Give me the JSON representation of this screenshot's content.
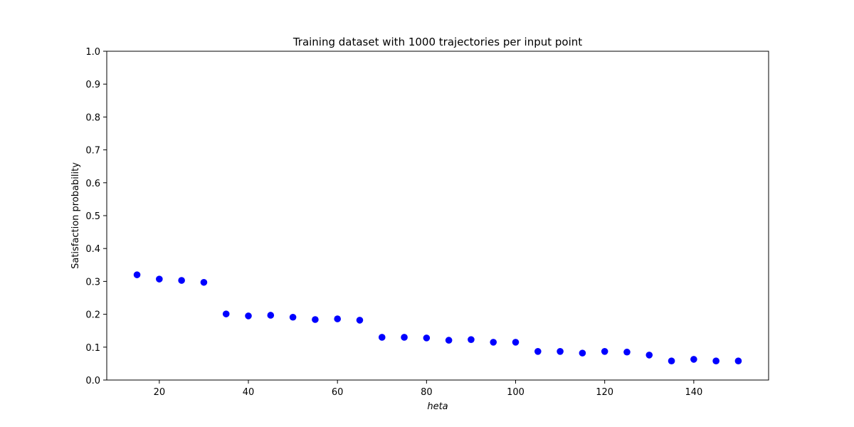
{
  "chart_data": {
    "type": "scatter",
    "title": "Training dataset with 1000 trajectories per input point",
    "xlabel": "heta",
    "ylabel": "Satisfaction probability",
    "xlim": [
      8.2,
      156.8
    ],
    "ylim": [
      0,
      1
    ],
    "xticks": [
      20,
      40,
      60,
      80,
      100,
      120,
      140
    ],
    "yticks": [
      0.0,
      0.1,
      0.2,
      0.3,
      0.4,
      0.5,
      0.6,
      0.7,
      0.8,
      0.9,
      1.0
    ],
    "grid": false,
    "marker_color": "#0000ff",
    "series": [
      {
        "x": [
          15,
          20,
          25,
          30,
          35,
          40,
          45,
          50,
          55,
          60,
          65,
          70,
          75,
          80,
          85,
          90,
          95,
          100,
          105,
          110,
          115,
          120,
          125,
          130,
          135,
          140,
          145,
          150
        ],
        "y": [
          0.32,
          0.307,
          0.303,
          0.297,
          0.201,
          0.195,
          0.197,
          0.191,
          0.184,
          0.186,
          0.182,
          0.13,
          0.13,
          0.128,
          0.121,
          0.123,
          0.115,
          0.115,
          0.087,
          0.087,
          0.082,
          0.087,
          0.085,
          0.076,
          0.058,
          0.063,
          0.058,
          0.058
        ]
      }
    ]
  }
}
